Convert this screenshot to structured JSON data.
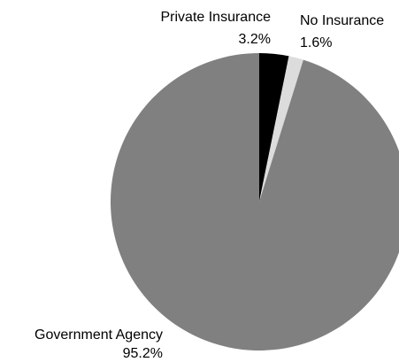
{
  "chart_data": {
    "type": "pie",
    "title": "",
    "start_angle_deg": 0,
    "direction": "clockwise",
    "slices": [
      {
        "label": "Private Insurance",
        "value": 3.2,
        "value_label": "3.2%",
        "color": "#000000"
      },
      {
        "label": "No Insurance",
        "value": 1.6,
        "value_label": "1.6%",
        "color": "#dcdcdc"
      },
      {
        "label": "Government Agency",
        "value": 95.2,
        "value_label": "95.2%",
        "color": "#808080"
      }
    ]
  }
}
